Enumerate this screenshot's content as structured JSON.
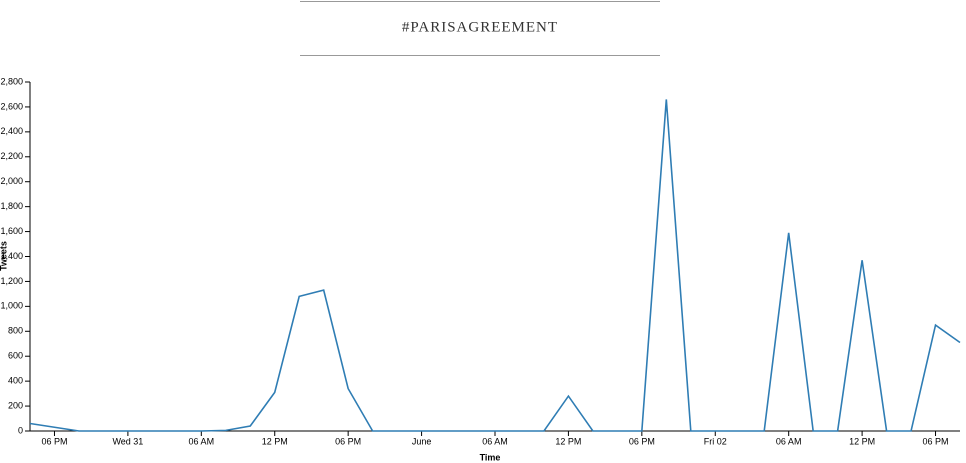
{
  "chart_data": {
    "type": "line",
    "title": "#PARISAGREEMENT",
    "x_label": "Time",
    "y_label": "Tweets",
    "x": [
      "05-30 16:00",
      "05-30 18:00",
      "05-30 20:00",
      "05-30 22:00",
      "05-31 00:00",
      "05-31 02:00",
      "05-31 04:00",
      "05-31 06:00",
      "05-31 08:00",
      "05-31 10:00",
      "05-31 12:00",
      "05-31 14:00",
      "05-31 16:00",
      "05-31 18:00",
      "05-31 20:00",
      "05-31 22:00",
      "06-01 00:00",
      "06-01 02:00",
      "06-01 04:00",
      "06-01 06:00",
      "06-01 08:00",
      "06-01 10:00",
      "06-01 12:00",
      "06-01 14:00",
      "06-01 16:00",
      "06-01 18:00",
      "06-01 20:00",
      "06-01 22:00",
      "06-02 00:00",
      "06-02 02:00",
      "06-02 04:00",
      "06-02 06:00",
      "06-02 08:00",
      "06-02 10:00",
      "06-02 12:00",
      "06-02 14:00",
      "06-02 16:00",
      "06-02 18:00",
      "06-02 20:00"
    ],
    "series": [
      {
        "name": "Tweets",
        "color": "#2f7db4",
        "values": [
          60,
          30,
          0,
          0,
          0,
          0,
          0,
          0,
          5,
          40,
          310,
          1080,
          1130,
          340,
          0,
          0,
          0,
          0,
          0,
          0,
          0,
          0,
          280,
          0,
          0,
          0,
          2660,
          0,
          0,
          0,
          0,
          1590,
          0,
          0,
          1370,
          0,
          0,
          850,
          710
        ]
      }
    ],
    "xlim": [
      "05-30 16:00",
      "06-02 20:00"
    ],
    "xticks": [
      {
        "value": "05-30 18:00",
        "label": "06 PM"
      },
      {
        "value": "05-31 00:00",
        "label": "Wed 31"
      },
      {
        "value": "05-31 06:00",
        "label": "06 AM"
      },
      {
        "value": "05-31 12:00",
        "label": "12 PM"
      },
      {
        "value": "05-31 18:00",
        "label": "06 PM"
      },
      {
        "value": "06-01 00:00",
        "label": "June"
      },
      {
        "value": "06-01 06:00",
        "label": "06 AM"
      },
      {
        "value": "06-01 12:00",
        "label": "12 PM"
      },
      {
        "value": "06-01 18:00",
        "label": "06 PM"
      },
      {
        "value": "06-02 00:00",
        "label": "Fri 02"
      },
      {
        "value": "06-02 06:00",
        "label": "06 AM"
      },
      {
        "value": "06-02 12:00",
        "label": "12 PM"
      },
      {
        "value": "06-02 18:00",
        "label": "06 PM"
      }
    ],
    "ylim": [
      0,
      2800
    ],
    "yticks": [
      0,
      200,
      400,
      600,
      800,
      {
        "value": 1000,
        "label": "1,000"
      },
      {
        "value": 1200,
        "label": "1,200"
      },
      {
        "value": 1400,
        "label": "1,400"
      },
      {
        "value": 1600,
        "label": "1,600"
      },
      {
        "value": 1800,
        "label": "1,800"
      },
      {
        "value": 2000,
        "label": "2,000"
      },
      {
        "value": 2200,
        "label": "2,200"
      },
      {
        "value": 2400,
        "label": "2,400"
      },
      {
        "value": 2600,
        "label": "2,600"
      },
      {
        "value": 2800,
        "label": "2,800"
      }
    ]
  }
}
